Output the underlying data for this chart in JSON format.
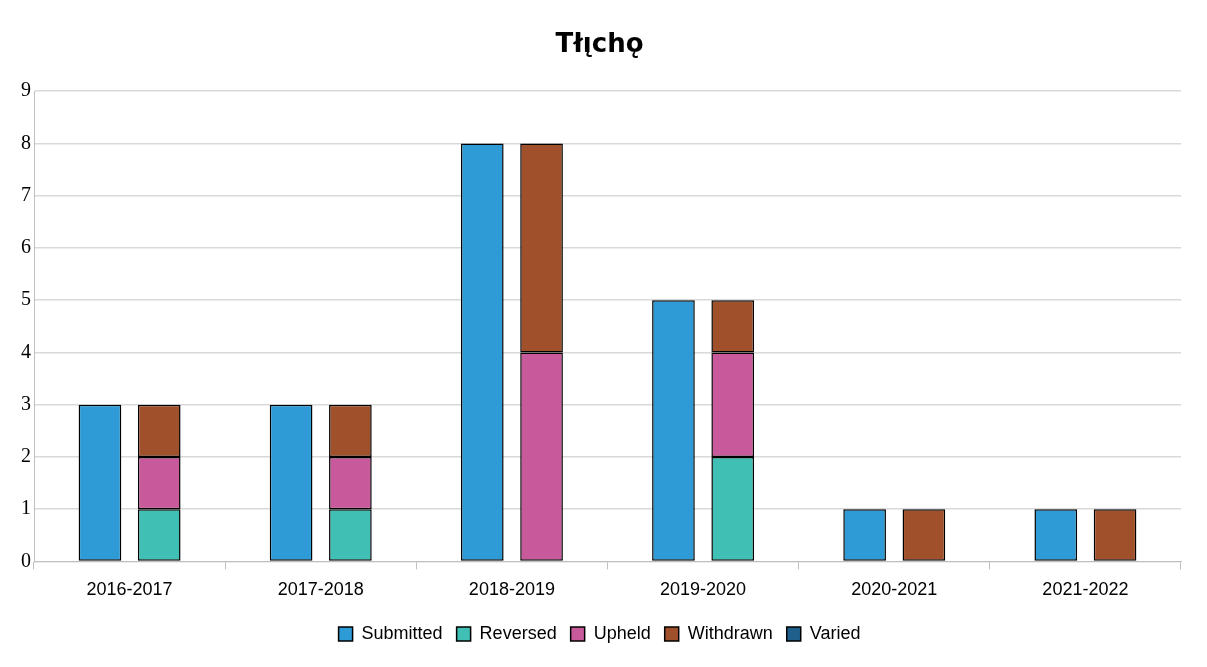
{
  "chart_data": {
    "type": "bar",
    "title": "Tłı̨chǫ",
    "categories": [
      "2016-2017",
      "2017-2018",
      "2018-2019",
      "2019-2020",
      "2020-2021",
      "2021-2022"
    ],
    "series": [
      {
        "name": "Submitted",
        "color": "#2e9bd6",
        "values": [
          3,
          3,
          8,
          5,
          1,
          1
        ]
      },
      {
        "name": "Reversed",
        "color": "#40bfb5",
        "values": [
          1,
          1,
          0,
          2,
          0,
          0
        ],
        "base": [
          0,
          0,
          null,
          0,
          null,
          null
        ]
      },
      {
        "name": "Upheld",
        "color": "#c85a9b",
        "values": [
          1,
          1,
          4,
          2,
          0,
          0
        ],
        "base": [
          1,
          1,
          0,
          2,
          null,
          null
        ]
      },
      {
        "name": "Withdrawn",
        "color": "#a0502a",
        "values": [
          1,
          1,
          4,
          1,
          1,
          1
        ],
        "base": [
          2,
          2,
          4,
          4,
          0,
          0
        ]
      },
      {
        "name": "Varied",
        "color": "#1f5f8b",
        "values": [
          0,
          0,
          0,
          0,
          0,
          0
        ],
        "base": [
          null,
          null,
          null,
          null,
          null,
          null
        ]
      }
    ],
    "ylim": [
      0,
      9
    ],
    "yticks": [
      0,
      1,
      2,
      3,
      4,
      5,
      6,
      7,
      8,
      9
    ],
    "grid": "y",
    "legend": "bottom"
  }
}
